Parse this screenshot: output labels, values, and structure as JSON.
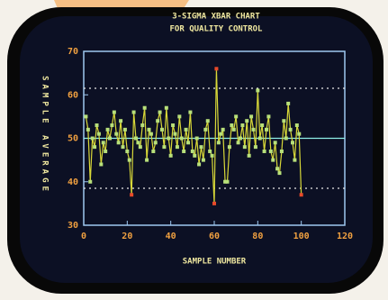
{
  "chart_data": {
    "type": "line",
    "title": "3-SIGMA XBAR CHART",
    "subtitle": "FOR QUALITY CONTROL",
    "x_label": "SAMPLE NUMBER",
    "y_label": "SAMPLE AVERAGE",
    "x": [
      1,
      2,
      3,
      4,
      5,
      6,
      7,
      8,
      9,
      10,
      11,
      12,
      13,
      14,
      15,
      16,
      17,
      18,
      19,
      20,
      21,
      22,
      23,
      24,
      25,
      26,
      27,
      28,
      29,
      30,
      31,
      32,
      33,
      34,
      35,
      36,
      37,
      38,
      39,
      40,
      41,
      42,
      43,
      44,
      45,
      46,
      47,
      48,
      49,
      50,
      51,
      52,
      53,
      54,
      55,
      56,
      57,
      58,
      59,
      60,
      61,
      62,
      63,
      64,
      65,
      66,
      67,
      68,
      69,
      70,
      71,
      72,
      73,
      74,
      75,
      76,
      77,
      78,
      79,
      80,
      81,
      82,
      83,
      84,
      85,
      86,
      87,
      88,
      89,
      90,
      91,
      92,
      93,
      94,
      95,
      96,
      97,
      98,
      99,
      100
    ],
    "series": [
      {
        "name": "SAMPLE AVERAGE",
        "color": "#d8d838",
        "marker_color": "#b8e07a",
        "alarm_color": "#e84a2a",
        "values": [
          55,
          52,
          40,
          50,
          48,
          53,
          51,
          44,
          49,
          47,
          52,
          50,
          53,
          56,
          51,
          49,
          54,
          48,
          52,
          47,
          45,
          37,
          56,
          50,
          49,
          48,
          53,
          57,
          45,
          52,
          51,
          47,
          49,
          54,
          56,
          52,
          48,
          57,
          50,
          46,
          53,
          51,
          48,
          55,
          50,
          47,
          52,
          49,
          56,
          47,
          46,
          50,
          44,
          48,
          45,
          52,
          54,
          47,
          46,
          35,
          66,
          49,
          51,
          52,
          40,
          40,
          48,
          53,
          52,
          55,
          49,
          50,
          53,
          48,
          54,
          46,
          55,
          52,
          48,
          61,
          50,
          53,
          47,
          52,
          55,
          47,
          45,
          49,
          43,
          42,
          47,
          54,
          50,
          58,
          52,
          49,
          45,
          53,
          51,
          37
        ]
      }
    ],
    "center_line": 50,
    "ucl": 61.5,
    "lcl": 38.5,
    "xlim": [
      0,
      120
    ],
    "xticks": [
      0,
      20,
      40,
      60,
      80,
      100,
      120
    ],
    "ylim": [
      30,
      70
    ],
    "yticks": [
      30,
      40,
      50,
      60,
      70
    ]
  }
}
